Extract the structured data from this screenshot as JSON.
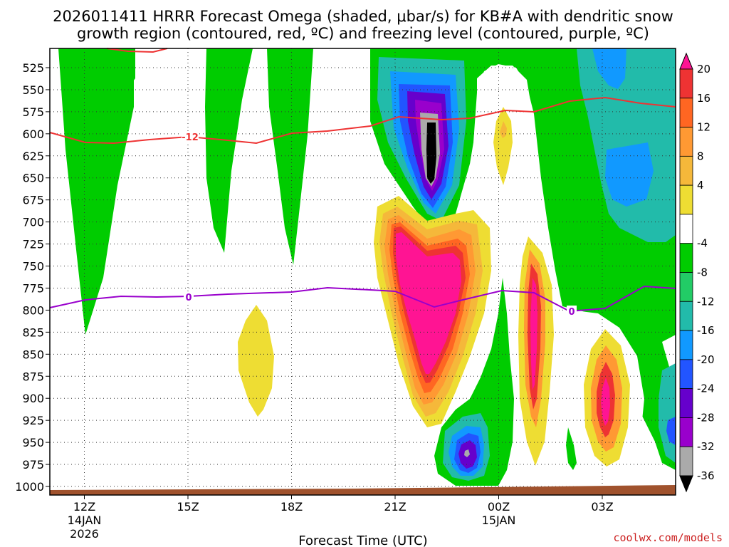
{
  "chart_data": {
    "type": "contour",
    "title_line1": "2026011411 HRRR Forecast Omega (shaded, μbar/s) for KB#A with dendritic snow",
    "title_line2": "growth region (contoured, red, ºC) and freezing level (contoured, purple, ºC)",
    "xlabel": "Forecast Time (UTC)",
    "credit": "coolwx.com/models",
    "y_levels": [
      "525",
      "550",
      "575",
      "600",
      "625",
      "650",
      "675",
      "700",
      "725",
      "750",
      "775",
      "800",
      "825",
      "850",
      "875",
      "900",
      "925",
      "950",
      "975",
      "1000"
    ],
    "x_ticks": [
      {
        "label": "12Z",
        "sub1": "14JAN",
        "sub2": "2026",
        "hour": 1
      },
      {
        "label": "15Z",
        "sub1": "",
        "sub2": "",
        "hour": 4
      },
      {
        "label": "18Z",
        "sub1": "",
        "sub2": "",
        "hour": 7
      },
      {
        "label": "21Z",
        "sub1": "",
        "sub2": "",
        "hour": 10
      },
      {
        "label": "00Z",
        "sub1": "15JAN",
        "sub2": "",
        "hour": 13
      },
      {
        "label": "03Z",
        "sub1": "",
        "sub2": "",
        "hour": 16
      }
    ],
    "colorbar": {
      "labels": [
        "20",
        "16",
        "12",
        "8",
        "4",
        "-4",
        "-8",
        "-12",
        "-16",
        "-20",
        "-24",
        "-28",
        "-32",
        "-36"
      ],
      "colors": [
        "#ff1493",
        "#ee3333",
        "#ff6622",
        "#ff9933",
        "#f5b83a",
        "#eedd33",
        "#ffffff",
        "#00cc00",
        "#22cc66",
        "#22bbaa",
        "#1199ff",
        "#2255ff",
        "#6600cc",
        "#9900cc",
        "#aaaaaa",
        "#000000"
      ]
    },
    "contours": {
      "minus12_label": "-12",
      "freezing_label": "0",
      "dgz_color": "#ee3333",
      "freezing_color": "#9900cc"
    },
    "ground_color": "#a0522d"
  }
}
